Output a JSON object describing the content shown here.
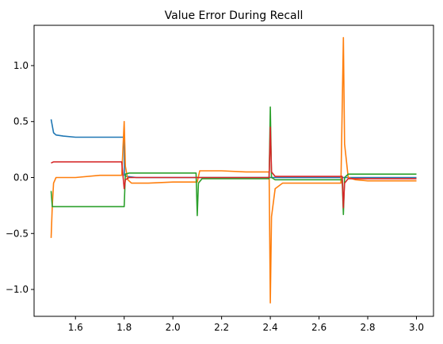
{
  "chart_data": {
    "type": "line",
    "title": "Value Error During Recall",
    "xlabel": "",
    "ylabel": "",
    "xlim": [
      1.43,
      3.07
    ],
    "ylim": [
      -1.24,
      1.36
    ],
    "xticks": [
      1.6,
      1.8,
      2.0,
      2.2,
      2.4,
      2.6,
      2.8,
      3.0
    ],
    "xtick_labels": [
      "1.6",
      "1.8",
      "2.0",
      "2.2",
      "2.4",
      "2.6",
      "2.8",
      "3.0"
    ],
    "yticks": [
      -1.0,
      -0.5,
      0.0,
      0.5,
      1.0
    ],
    "ytick_labels": [
      "−1.0",
      "−0.5",
      "0.0",
      "0.5",
      "1.0"
    ],
    "grid": false,
    "legend": "none",
    "series": [
      {
        "color": "#1f77b4",
        "x": [
          1.5,
          1.51,
          1.52,
          1.55,
          1.6,
          1.65,
          1.7,
          1.75,
          1.8,
          1.801,
          1.81,
          1.85,
          1.9,
          2.0,
          2.1,
          2.2,
          2.3,
          2.4,
          2.5,
          2.6,
          2.7,
          2.8,
          2.9,
          3.0
        ],
        "y": [
          0.52,
          0.4,
          0.38,
          0.37,
          0.36,
          0.36,
          0.36,
          0.36,
          0.36,
          0.02,
          0.01,
          0.0,
          0.0,
          0.0,
          0.0,
          0.0,
          0.0,
          0.0,
          0.0,
          0.0,
          0.0,
          0.0,
          0.0,
          0.0
        ]
      },
      {
        "color": "#ff7f0e",
        "x": [
          1.5,
          1.505,
          1.51,
          1.52,
          1.55,
          1.6,
          1.7,
          1.79,
          1.8,
          1.805,
          1.815,
          1.83,
          1.9,
          2.0,
          2.1,
          2.11,
          2.2,
          2.3,
          2.395,
          2.4,
          2.405,
          2.42,
          2.45,
          2.5,
          2.6,
          2.69,
          2.7,
          2.705,
          2.72,
          2.75,
          2.8,
          2.9,
          3.0
        ],
        "y": [
          -0.54,
          -0.25,
          -0.05,
          0.0,
          0.0,
          0.0,
          0.02,
          0.02,
          0.5,
          0.1,
          -0.02,
          -0.05,
          -0.05,
          -0.04,
          -0.04,
          0.06,
          0.06,
          0.05,
          0.05,
          -1.12,
          -0.35,
          -0.1,
          -0.05,
          -0.05,
          -0.05,
          -0.05,
          1.25,
          0.3,
          0.0,
          -0.02,
          -0.03,
          -0.03,
          -0.03
        ]
      },
      {
        "color": "#2ca02c",
        "x": [
          1.5,
          1.505,
          1.51,
          1.55,
          1.6,
          1.7,
          1.79,
          1.8,
          1.805,
          1.82,
          1.9,
          2.0,
          2.095,
          2.1,
          2.105,
          2.12,
          2.2,
          2.3,
          2.395,
          2.4,
          2.405,
          2.42,
          2.5,
          2.6,
          2.695,
          2.7,
          2.705,
          2.72,
          2.8,
          2.9,
          3.0
        ],
        "y": [
          -0.12,
          -0.26,
          -0.26,
          -0.26,
          -0.26,
          -0.26,
          -0.26,
          -0.26,
          0.03,
          0.04,
          0.04,
          0.04,
          0.04,
          -0.34,
          -0.05,
          -0.01,
          -0.01,
          -0.01,
          -0.01,
          0.63,
          0.0,
          -0.02,
          -0.02,
          -0.02,
          -0.02,
          -0.33,
          0.0,
          0.03,
          0.03,
          0.03,
          0.03
        ]
      },
      {
        "color": "#d62728",
        "x": [
          1.5,
          1.51,
          1.55,
          1.6,
          1.7,
          1.79,
          1.8,
          1.805,
          1.82,
          1.9,
          2.0,
          2.1,
          2.2,
          2.3,
          2.395,
          2.4,
          2.405,
          2.42,
          2.5,
          2.6,
          2.695,
          2.7,
          2.705,
          2.72,
          2.8,
          2.9,
          3.0
        ],
        "y": [
          0.13,
          0.14,
          0.14,
          0.14,
          0.14,
          0.14,
          -0.1,
          -0.02,
          0.0,
          0.0,
          0.0,
          0.0,
          0.0,
          0.0,
          0.0,
          0.45,
          0.05,
          0.01,
          0.01,
          0.01,
          0.01,
          -0.27,
          -0.05,
          -0.01,
          -0.01,
          -0.01,
          -0.01
        ]
      }
    ]
  }
}
